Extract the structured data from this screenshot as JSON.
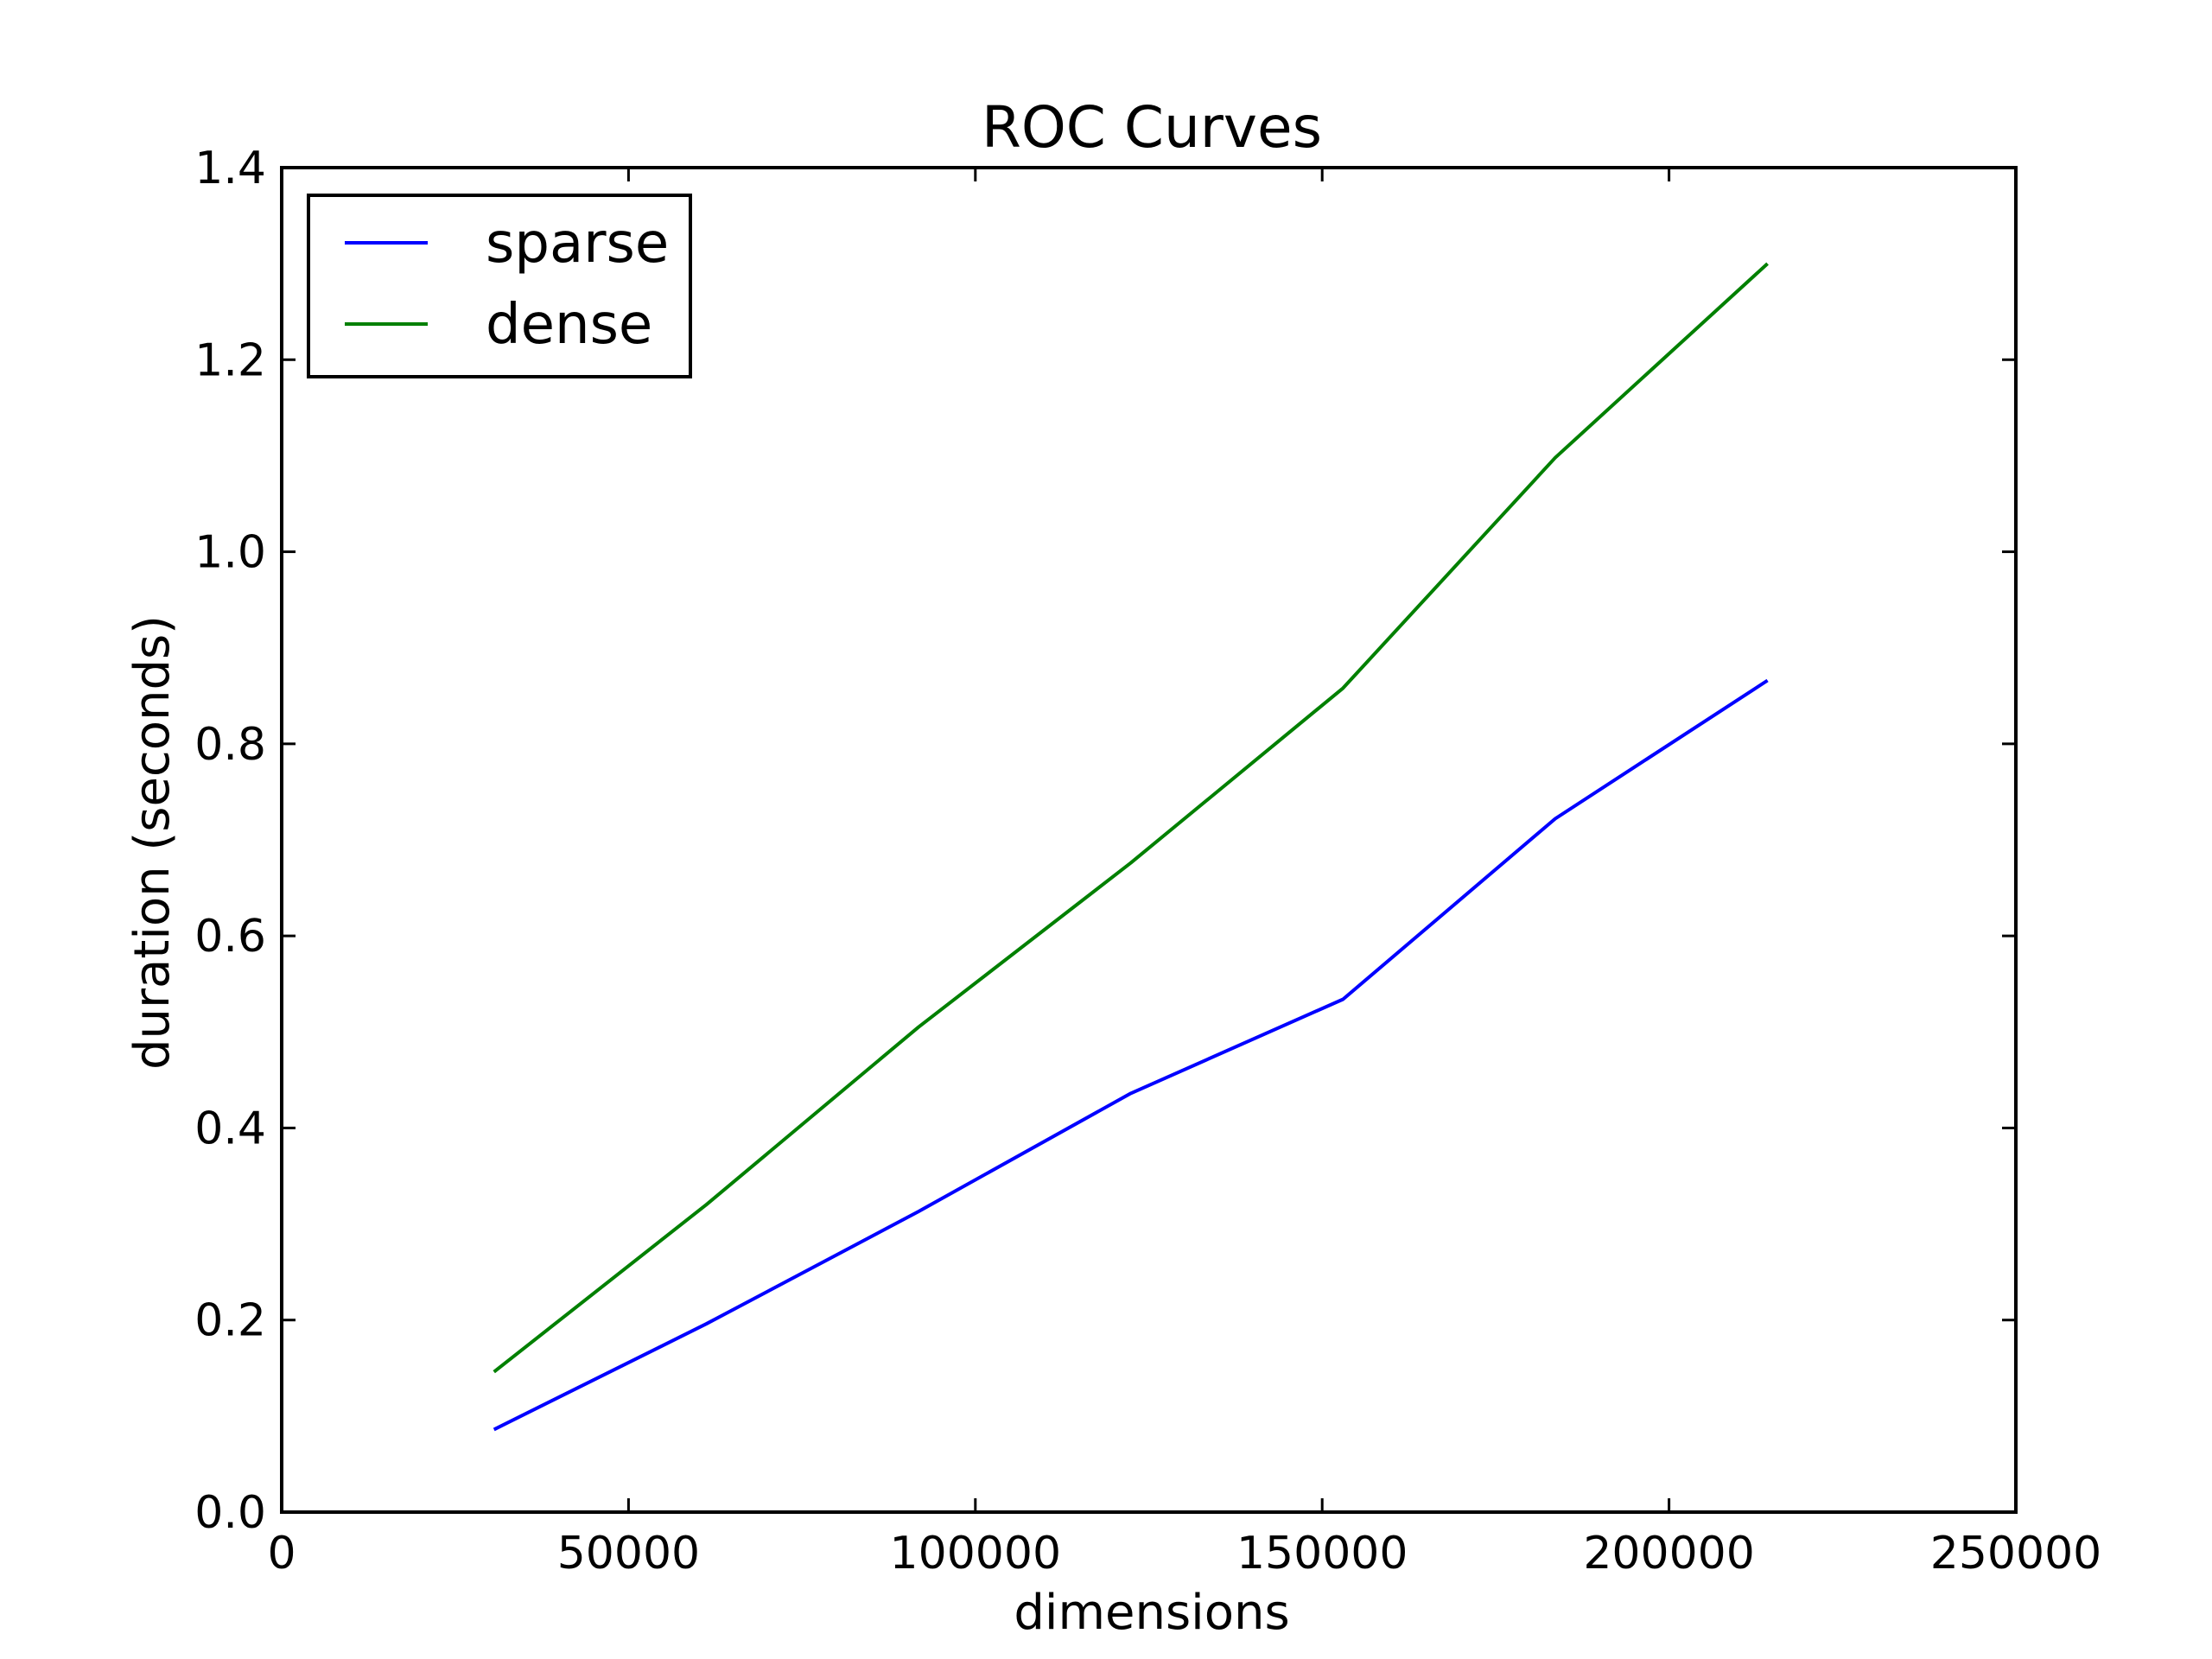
{
  "chart_data": {
    "type": "line",
    "title": "ROC Curves",
    "xlabel": "dimensions",
    "ylabel": "duration (seconds)",
    "xlim": [
      0,
      250000
    ],
    "ylim": [
      0.0,
      1.4
    ],
    "xticks": [
      "0",
      "50000",
      "100000",
      "150000",
      "200000",
      "250000"
    ],
    "yticks": [
      "0.0",
      "0.2",
      "0.4",
      "0.6",
      "0.8",
      "1.0",
      "1.2",
      "1.4"
    ],
    "grid": false,
    "legend_position": "top-left",
    "series": [
      {
        "name": "sparse",
        "color": "#0000ff",
        "x": [
          30600,
          61200,
          91800,
          122400,
          153000,
          183600,
          214200
        ],
        "y": [
          0.086,
          0.196,
          0.313,
          0.436,
          0.534,
          0.722,
          0.866
        ]
      },
      {
        "name": "dense",
        "color": "#008000",
        "x": [
          30600,
          61200,
          91800,
          122400,
          153000,
          183600,
          214200
        ],
        "y": [
          0.146,
          0.32,
          0.505,
          0.676,
          0.858,
          1.098,
          1.3
        ]
      }
    ]
  }
}
